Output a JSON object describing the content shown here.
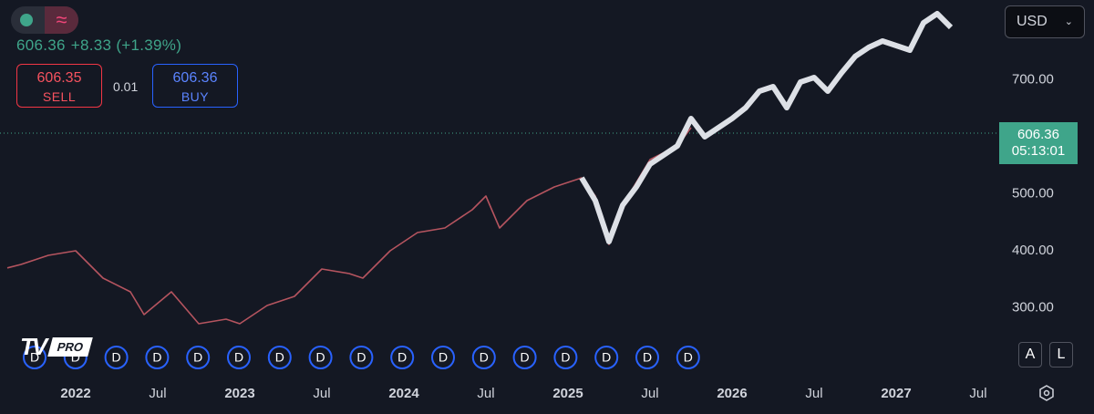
{
  "toolbar": {
    "wave_icon": "≈",
    "currency": "USD",
    "currency_chevron": "⌄"
  },
  "quote": {
    "price": "606.36",
    "change": "+8.33 (+1.39%)",
    "sell_price": "606.35",
    "sell_label": "SELL",
    "spread": "0.01",
    "buy_price": "606.36",
    "buy_label": "BUY"
  },
  "logo": {
    "mark": "TV",
    "badge": "PRO"
  },
  "scale_buttons": [
    "A",
    "L"
  ],
  "countdown": "05:13:01",
  "dividends": [
    "D",
    "D",
    "D",
    "D",
    "D",
    "D",
    "D",
    "D",
    "D",
    "D",
    "D",
    "D",
    "D",
    "D",
    "D",
    "D",
    "D"
  ],
  "chart_data": {
    "type": "line",
    "last_price": 606.36,
    "series": [
      {
        "name": "Price",
        "color": "#b5545f",
        "x": [
          "2021-08",
          "2021-09",
          "2021-11",
          "2022-01",
          "2022-03",
          "2022-05",
          "2022-06",
          "2022-08",
          "2022-10",
          "2022-12",
          "2023-01",
          "2023-03",
          "2023-05",
          "2023-07",
          "2023-09",
          "2023-10",
          "2023-12",
          "2024-02",
          "2024-04",
          "2024-06",
          "2024-07",
          "2024-08",
          "2024-10",
          "2024-12",
          "2025-02",
          "2025-03",
          "2025-04",
          "2025-05",
          "2025-07",
          "2025-09",
          "2025-10"
        ],
        "values": [
          370,
          376,
          392,
          400,
          352,
          328,
          288,
          328,
          272,
          280,
          272,
          304,
          320,
          368,
          360,
          352,
          400,
          432,
          440,
          472,
          496,
          440,
          488,
          512,
          528,
          496,
          411,
          480,
          560,
          584,
          616
        ]
      },
      {
        "name": "Projection",
        "color": "#dde0e6",
        "x": [
          "2025-02",
          "2025-03",
          "2025-04",
          "2025-05",
          "2025-06",
          "2025-07",
          "2025-08",
          "2025-09",
          "2025-10",
          "2025-11",
          "2025-12",
          "2026-01",
          "2026-02",
          "2026-03",
          "2026-04",
          "2026-05",
          "2026-06",
          "2026-07",
          "2026-08",
          "2026-09",
          "2026-10",
          "2026-11",
          "2026-12",
          "2027-01",
          "2027-02",
          "2027-03",
          "2027-04",
          "2027-05"
        ],
        "values": [
          528,
          488,
          416,
          480,
          512,
          552,
          568,
          584,
          632,
          600,
          616,
          632,
          651,
          680,
          688,
          651,
          696,
          704,
          680,
          712,
          741,
          757,
          768,
          760,
          752,
          800,
          816,
          792
        ]
      }
    ],
    "xlim": [
      "2021-08",
      "2027-08"
    ],
    "xticks": [
      {
        "value": "2022-01",
        "label": "2022"
      },
      {
        "value": "2022-07",
        "label": "Jul"
      },
      {
        "value": "2023-01",
        "label": "2023"
      },
      {
        "value": "2023-07",
        "label": "Jul"
      },
      {
        "value": "2024-01",
        "label": "2024"
      },
      {
        "value": "2024-07",
        "label": "Jul"
      },
      {
        "value": "2025-01",
        "label": "2025"
      },
      {
        "value": "2025-07",
        "label": "Jul"
      },
      {
        "value": "2026-01",
        "label": "2026"
      },
      {
        "value": "2026-07",
        "label": "Jul"
      },
      {
        "value": "2027-01",
        "label": "2027"
      },
      {
        "value": "2027-07",
        "label": "Jul"
      }
    ],
    "ylim": [
      184,
      840
    ],
    "yticks": [
      {
        "value": 300,
        "label": "300.00"
      },
      {
        "value": 400,
        "label": "400.00"
      },
      {
        "value": 500,
        "label": "500.00"
      },
      {
        "value": 700,
        "label": "700.00"
      }
    ],
    "grid": false
  }
}
